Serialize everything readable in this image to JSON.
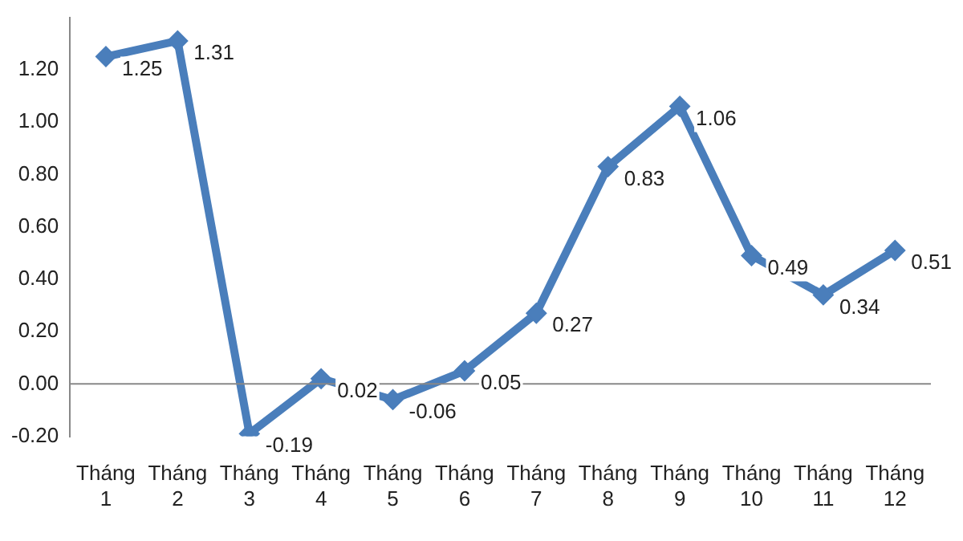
{
  "chart_data": {
    "type": "line",
    "categories": [
      "Tháng 1",
      "Tháng 2",
      "Tháng 3",
      "Tháng 4",
      "Tháng 5",
      "Tháng 6",
      "Tháng 7",
      "Tháng 8",
      "Tháng 9",
      "Tháng 10",
      "Tháng 11",
      "Tháng 12"
    ],
    "series": [
      {
        "color": "#4a7ebb",
        "values": [
          1.25,
          1.31,
          -0.19,
          0.02,
          -0.06,
          0.05,
          0.27,
          0.83,
          1.06,
          0.49,
          0.34,
          0.51
        ]
      }
    ],
    "value_labels": [
      "1.25",
      "1.31",
      "-0.19",
      "0.02",
      "-0.06",
      "0.05",
      "0.27",
      "0.83",
      "1.06",
      "0.49",
      "0.34",
      "0.51"
    ],
    "ylim": [
      -0.2,
      1.4
    ],
    "yticks": [
      {
        "value": -0.2,
        "label": "-0.20"
      },
      {
        "value": 0,
        "label": "0.00"
      },
      {
        "value": 0.2,
        "label": "0.20"
      },
      {
        "value": 0.4,
        "label": "0.40"
      },
      {
        "value": 0.6,
        "label": "0.60"
      },
      {
        "value": 0.8,
        "label": "0.80"
      },
      {
        "value": 1.0,
        "label": "1.00"
      },
      {
        "value": 1.2,
        "label": "1.20"
      }
    ],
    "ref_lines": [
      {
        "axis": "y",
        "value": 0
      }
    ],
    "marker": "diamond",
    "line_style": "solid",
    "grid": false,
    "legend": false
  }
}
